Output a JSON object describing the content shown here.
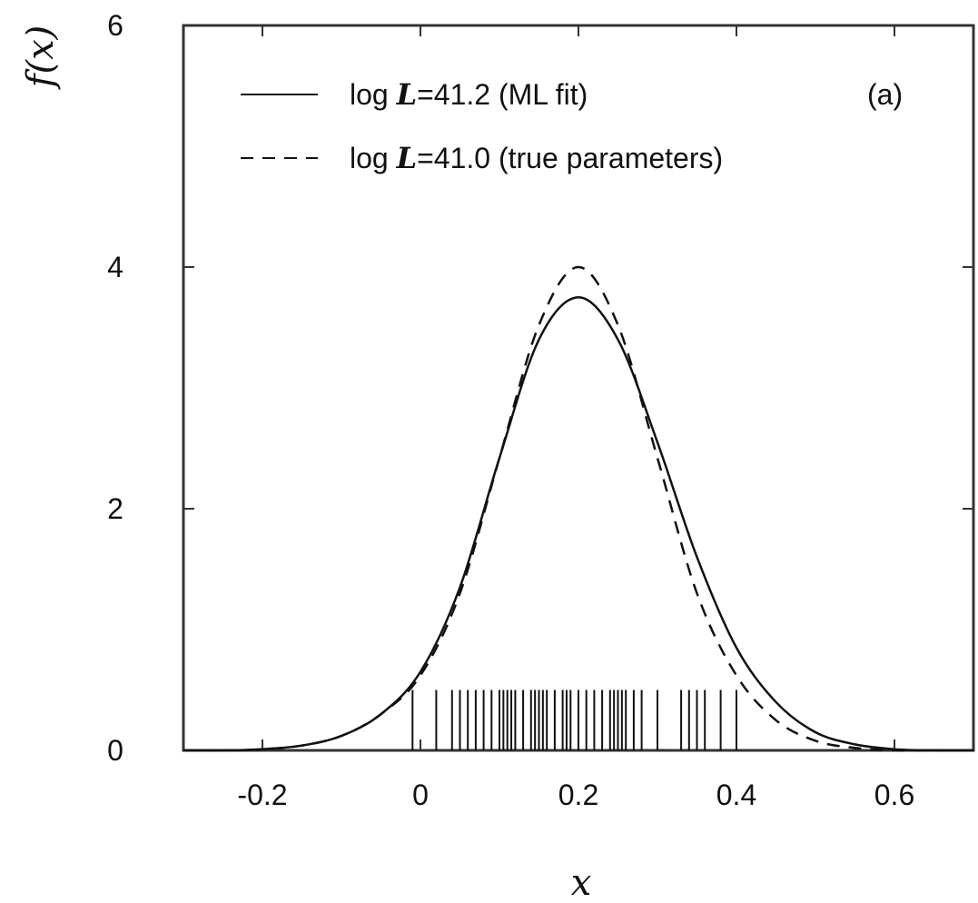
{
  "chart_data": {
    "type": "line",
    "title": "",
    "panel_label": "(a)",
    "xlabel": "x",
    "ylabel": "f(x)",
    "xlim": [
      -0.3,
      0.7
    ],
    "ylim": [
      0,
      6
    ],
    "x_ticks": [
      -0.2,
      0,
      0.2,
      0.4,
      0.6
    ],
    "x_tick_labels": [
      "-0.2",
      "0",
      "0.2",
      "0.4",
      "0.6"
    ],
    "y_ticks": [
      0,
      2,
      4,
      6
    ],
    "y_tick_labels": [
      "0",
      "2",
      "4",
      "6"
    ],
    "legend_position": "top-left",
    "grid": false,
    "series": [
      {
        "name": "log L=41.2 (ML fit)",
        "style": "solid",
        "x": [
          -0.3,
          -0.25,
          -0.2,
          -0.15,
          -0.1,
          -0.05,
          0,
          0.05,
          0.1,
          0.15,
          0.2,
          0.25,
          0.3,
          0.35,
          0.4,
          0.45,
          0.5,
          0.55,
          0.6,
          0.65,
          0.7
        ],
        "y": [
          0,
          0,
          0.01,
          0.04,
          0.12,
          0.3,
          0.65,
          1.35,
          2.42,
          3.4,
          3.75,
          3.4,
          2.55,
          1.6,
          0.85,
          0.4,
          0.15,
          0.05,
          0.01,
          0,
          0
        ]
      },
      {
        "name": "log L=41.0 (true parameters)",
        "style": "dashed",
        "x": [
          -0.3,
          -0.25,
          -0.2,
          -0.15,
          -0.1,
          -0.05,
          0,
          0.05,
          0.1,
          0.15,
          0.2,
          0.25,
          0.3,
          0.35,
          0.4,
          0.45,
          0.5,
          0.55,
          0.6,
          0.65,
          0.7
        ],
        "y": [
          0,
          0,
          0.01,
          0.04,
          0.12,
          0.3,
          0.62,
          1.3,
          2.42,
          3.52,
          4.0,
          3.52,
          2.42,
          1.3,
          0.62,
          0.25,
          0.08,
          0.02,
          0,
          0,
          0
        ]
      }
    ],
    "rug": {
      "height": 0.5,
      "x": [
        -0.01,
        0.02,
        0.04,
        0.05,
        0.06,
        0.07,
        0.08,
        0.09,
        0.1,
        0.105,
        0.11,
        0.115,
        0.12,
        0.13,
        0.14,
        0.145,
        0.15,
        0.155,
        0.16,
        0.17,
        0.18,
        0.185,
        0.19,
        0.2,
        0.21,
        0.22,
        0.23,
        0.24,
        0.245,
        0.25,
        0.255,
        0.26,
        0.27,
        0.28,
        0.3,
        0.33,
        0.34,
        0.35,
        0.36,
        0.38,
        0.4
      ]
    },
    "legend": [
      {
        "label_pre": "log ",
        "label_var": "L",
        "label_post": "=41.2 (ML fit)",
        "style": "solid"
      },
      {
        "label_pre": "log ",
        "label_var": "L",
        "label_post": "=41.0 (true parameters)",
        "style": "dashed"
      }
    ]
  }
}
